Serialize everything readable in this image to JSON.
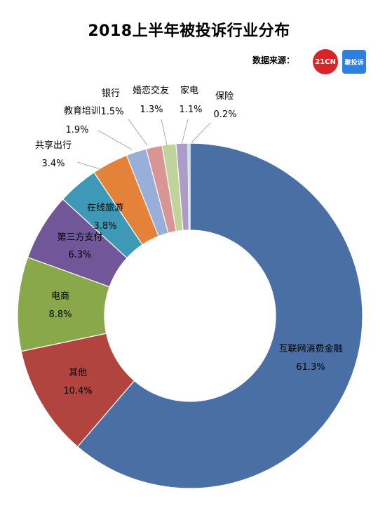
{
  "title": "2018上半年被投诉行业分布",
  "source": {
    "label": "数据来源：",
    "logo1_text": "21CN",
    "logo2_text": "聚投诉"
  },
  "chart_data": {
    "type": "pie",
    "donut": true,
    "title": "2018上半年被投诉行业分布",
    "legend": "none",
    "series": [
      {
        "name": "互联网消费金融",
        "value": 61.3,
        "label": "61.3%",
        "color": "#4a6fa5"
      },
      {
        "name": "其他",
        "value": 10.4,
        "label": "10.4%",
        "color": "#b2443f"
      },
      {
        "name": "电商",
        "value": 8.8,
        "label": "8.8%",
        "color": "#89a84a"
      },
      {
        "name": "第三方支付",
        "value": 6.3,
        "label": "6.3%",
        "color": "#71579a"
      },
      {
        "name": "在线旅游",
        "value": 3.8,
        "label": "3.8%",
        "color": "#3d99b5"
      },
      {
        "name": "共享出行",
        "value": 3.4,
        "label": "3.4%",
        "color": "#e5823a"
      },
      {
        "name": "教育培训",
        "value": 1.9,
        "label": "1.9%",
        "color": "#97afd9"
      },
      {
        "name": "银行",
        "value": 1.5,
        "label": "1.5%",
        "color": "#d89593"
      },
      {
        "name": "婚恋交友",
        "value": 1.3,
        "label": "1.3%",
        "color": "#bfd39a"
      },
      {
        "name": "家电",
        "value": 1.1,
        "label": "1.1%",
        "color": "#ad9cc7"
      },
      {
        "name": "保险",
        "value": 0.2,
        "label": "0.2%",
        "color": "#8ecbdc"
      }
    ]
  }
}
